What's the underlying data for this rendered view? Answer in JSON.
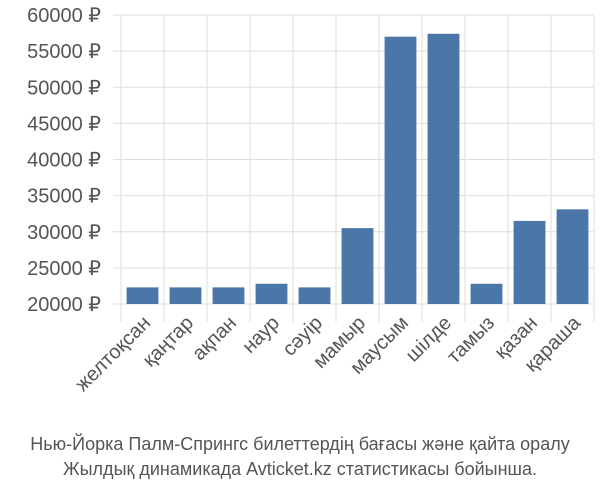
{
  "colors": {
    "bar": "#4a76a8",
    "grid": "#dddddd",
    "axis": "#888888",
    "text": "#555555"
  },
  "caption": {
    "line1": "Нью-Йорка Палм-Спрингс билеттердің бағасы және қайта оралу",
    "line2": "Жылдық динамикада Avticket.kz статистикасы бойынша."
  },
  "chart_data": {
    "type": "bar",
    "title": "",
    "xlabel": "",
    "ylabel": "",
    "ylim": [
      20000,
      60000
    ],
    "yticks": [
      20000,
      25000,
      30000,
      35000,
      40000,
      45000,
      50000,
      55000,
      60000
    ],
    "ytick_labels": [
      "20000 ₽",
      "25000 ₽",
      "30000 ₽",
      "35000 ₽",
      "40000 ₽",
      "45000 ₽",
      "50000 ₽",
      "55000 ₽",
      "60000 ₽"
    ],
    "categories": [
      "желтоқсан",
      "қаңтар",
      "ақпан",
      "наур",
      "сәуір",
      "мамыр",
      "маусым",
      "шілде",
      "тамыз",
      "қазан",
      "қараша"
    ],
    "values": [
      22300,
      22300,
      22300,
      22800,
      22300,
      30500,
      57000,
      57400,
      22800,
      31500,
      33100
    ],
    "grid": true,
    "legend": "none"
  }
}
